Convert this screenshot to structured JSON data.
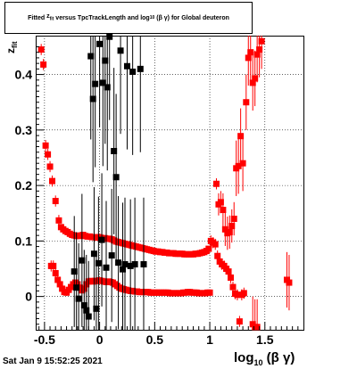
{
  "title": {
    "prefix": "Fitted",
    "z": "z",
    "z_sub": "fit",
    "middle": "versus TpcTrackLength and log",
    "log_sub": "10",
    "tail": "(β γ) for Global deuteron"
  },
  "footer": "Sat Jan  9 15:52:25 2021",
  "chart_data": {
    "type": "scatter",
    "title": "Fitted z_fit versus TpcTrackLength and log10(β γ) for Global deuteron",
    "xlabel": "log10(β γ)",
    "ylabel": "z_fit",
    "xlim": [
      -0.58,
      1.85
    ],
    "ylim": [
      -0.06,
      0.47
    ],
    "x_ticks": [
      "-0.5",
      "0",
      "0.5",
      "1",
      "1.5"
    ],
    "y_ticks": [
      "0",
      "0.1",
      "0.2",
      "0.3",
      "0.4"
    ],
    "grid": true,
    "colors": {
      "red": "#ff0000",
      "black": "#000000"
    },
    "series": [
      {
        "color": "#ff0000",
        "points": [
          [
            -0.53,
            0.445,
            0.01
          ],
          [
            -0.51,
            0.418,
            0.01
          ],
          [
            -0.49,
            0.272,
            0.01
          ],
          [
            -0.47,
            0.256,
            0.01
          ],
          [
            -0.45,
            0.234,
            0.01
          ],
          [
            -0.43,
            0.208,
            0.01
          ],
          [
            -0.4,
            0.172,
            0.01
          ],
          [
            -0.37,
            0.137,
            0.01
          ],
          [
            -0.35,
            0.125,
            0.004
          ],
          [
            -0.33,
            0.121,
            0.004
          ],
          [
            -0.31,
            0.118,
            0.004
          ],
          [
            -0.29,
            0.116,
            0.004
          ],
          [
            -0.27,
            0.113,
            0.004
          ],
          [
            -0.25,
            0.111,
            0.004
          ],
          [
            -0.23,
            0.11,
            0.004
          ],
          [
            -0.21,
            0.109,
            0.004
          ],
          [
            -0.19,
            0.109,
            0.004
          ],
          [
            -0.17,
            0.11,
            0.004
          ],
          [
            -0.15,
            0.111,
            0.004
          ],
          [
            -0.13,
            0.109,
            0.004
          ],
          [
            -0.11,
            0.108,
            0.004
          ],
          [
            -0.09,
            0.108,
            0.004
          ],
          [
            -0.07,
            0.107,
            0.004
          ],
          [
            -0.05,
            0.107,
            0.004
          ],
          [
            -0.03,
            0.106,
            0.004
          ],
          [
            -0.01,
            0.107,
            0.004
          ],
          [
            0.01,
            0.106,
            0.004
          ],
          [
            0.03,
            0.105,
            0.004
          ],
          [
            0.05,
            0.105,
            0.004
          ],
          [
            0.07,
            0.104,
            0.004
          ],
          [
            0.09,
            0.104,
            0.004
          ],
          [
            0.11,
            0.103,
            0.004
          ],
          [
            0.13,
            0.101,
            0.004
          ],
          [
            0.15,
            0.099,
            0.004
          ],
          [
            0.17,
            0.098,
            0.004
          ],
          [
            0.19,
            0.097,
            0.004
          ],
          [
            0.21,
            0.096,
            0.004
          ],
          [
            0.23,
            0.095,
            0.004
          ],
          [
            0.25,
            0.094,
            0.004
          ],
          [
            0.27,
            0.093,
            0.004
          ],
          [
            0.29,
            0.092,
            0.004
          ],
          [
            0.31,
            0.091,
            0.004
          ],
          [
            0.33,
            0.09,
            0.004
          ],
          [
            0.35,
            0.089,
            0.004
          ],
          [
            0.37,
            0.088,
            0.004
          ],
          [
            0.39,
            0.087,
            0.004
          ],
          [
            0.41,
            0.086,
            0.004
          ],
          [
            0.43,
            0.085,
            0.004
          ],
          [
            0.45,
            0.084,
            0.004
          ],
          [
            0.47,
            0.083,
            0.004
          ],
          [
            0.49,
            0.082,
            0.004
          ],
          [
            0.51,
            0.081,
            0.004
          ],
          [
            0.53,
            0.081,
            0.004
          ],
          [
            0.55,
            0.08,
            0.004
          ],
          [
            0.57,
            0.08,
            0.004
          ],
          [
            0.59,
            0.079,
            0.004
          ],
          [
            0.61,
            0.079,
            0.004
          ],
          [
            0.63,
            0.078,
            0.004
          ],
          [
            0.65,
            0.078,
            0.004
          ],
          [
            0.67,
            0.078,
            0.004
          ],
          [
            0.69,
            0.077,
            0.004
          ],
          [
            0.71,
            0.077,
            0.004
          ],
          [
            0.73,
            0.077,
            0.004
          ],
          [
            0.75,
            0.077,
            0.004
          ],
          [
            0.77,
            0.076,
            0.004
          ],
          [
            0.79,
            0.076,
            0.004
          ],
          [
            0.81,
            0.076,
            0.004
          ],
          [
            0.83,
            0.076,
            0.004
          ],
          [
            0.85,
            0.076,
            0.004
          ],
          [
            0.87,
            0.077,
            0.004
          ],
          [
            0.89,
            0.077,
            0.004
          ],
          [
            0.91,
            0.078,
            0.004
          ],
          [
            0.93,
            0.079,
            0.004
          ],
          [
            0.95,
            0.08,
            0.004
          ],
          [
            0.97,
            0.082,
            0.004
          ],
          [
            0.99,
            0.086,
            0.004
          ],
          [
            1.01,
            0.1,
            0.01
          ],
          [
            1.03,
            0.097,
            0.01
          ],
          [
            1.05,
            0.094,
            0.01
          ],
          [
            1.06,
            0.203,
            0.01
          ],
          [
            1.08,
            0.166,
            0.02
          ],
          [
            1.1,
            0.17,
            0.02
          ],
          [
            1.12,
            0.156,
            0.03
          ],
          [
            1.14,
            0.121,
            0.03
          ],
          [
            1.16,
            0.114,
            0.03
          ],
          [
            1.18,
            0.116,
            0.03
          ],
          [
            1.2,
            0.127,
            0.03
          ],
          [
            1.22,
            0.14,
            0.03
          ],
          [
            1.24,
            0.231,
            0.05
          ],
          [
            1.26,
            0.235,
            0.05
          ],
          [
            1.28,
            0.289,
            0.05
          ],
          [
            1.3,
            0.24,
            0.05
          ],
          [
            1.33,
            0.35,
            0.05
          ],
          [
            1.35,
            0.43,
            0.05
          ],
          [
            1.37,
            0.44,
            0.05
          ],
          [
            1.39,
            0.385,
            0.05
          ],
          [
            1.41,
            0.393,
            0.05
          ],
          [
            1.43,
            0.436,
            0.05
          ],
          [
            1.45,
            0.445,
            0.05
          ],
          [
            1.47,
            0.46,
            0.05
          ],
          [
            1.7,
            0.03,
            0.05
          ],
          [
            1.72,
            0.025,
            0.05
          ],
          [
            -0.44,
            0.055,
            0.01
          ],
          [
            -0.42,
            0.055,
            0.01
          ],
          [
            -0.4,
            0.042,
            0.01
          ],
          [
            -0.38,
            0.03,
            0.01
          ],
          [
            -0.36,
            0.022,
            0.01
          ],
          [
            -0.34,
            0.014,
            0.006
          ],
          [
            -0.32,
            0.008,
            0.006
          ],
          [
            -0.3,
            0.007,
            0.006
          ],
          [
            -0.28,
            0.012,
            0.005
          ],
          [
            -0.26,
            0.017,
            0.005
          ],
          [
            -0.24,
            0.022,
            0.005
          ],
          [
            -0.22,
            0.025,
            0.005
          ],
          [
            -0.2,
            0.022,
            0.005
          ],
          [
            -0.18,
            0.016,
            0.005
          ],
          [
            -0.16,
            0.011,
            0.005
          ],
          [
            -0.14,
            0.014,
            0.005
          ],
          [
            -0.12,
            0.022,
            0.005
          ],
          [
            -0.1,
            0.027,
            0.005
          ],
          [
            -0.08,
            0.028,
            0.005
          ],
          [
            -0.06,
            0.027,
            0.004
          ],
          [
            -0.04,
            0.028,
            0.004
          ],
          [
            -0.02,
            0.028,
            0.004
          ],
          [
            0.0,
            0.029,
            0.004
          ],
          [
            0.02,
            0.028,
            0.004
          ],
          [
            0.04,
            0.027,
            0.004
          ],
          [
            0.06,
            0.026,
            0.004
          ],
          [
            0.08,
            0.027,
            0.004
          ],
          [
            0.1,
            0.026,
            0.004
          ],
          [
            0.12,
            0.025,
            0.004
          ],
          [
            0.14,
            0.022,
            0.004
          ],
          [
            0.16,
            0.019,
            0.004
          ],
          [
            0.18,
            0.016,
            0.004
          ],
          [
            0.2,
            0.014,
            0.004
          ],
          [
            0.22,
            0.013,
            0.004
          ],
          [
            0.24,
            0.012,
            0.004
          ],
          [
            0.26,
            0.011,
            0.004
          ],
          [
            0.28,
            0.01,
            0.004
          ],
          [
            0.3,
            0.01,
            0.004
          ],
          [
            0.32,
            0.009,
            0.004
          ],
          [
            0.34,
            0.009,
            0.004
          ],
          [
            0.36,
            0.008,
            0.004
          ],
          [
            0.38,
            0.008,
            0.004
          ],
          [
            0.4,
            0.008,
            0.004
          ],
          [
            0.42,
            0.008,
            0.004
          ],
          [
            0.44,
            0.008,
            0.004
          ],
          [
            0.46,
            0.007,
            0.004
          ],
          [
            0.48,
            0.007,
            0.004
          ],
          [
            0.5,
            0.007,
            0.004
          ],
          [
            0.52,
            0.007,
            0.004
          ],
          [
            0.54,
            0.007,
            0.004
          ],
          [
            0.56,
            0.007,
            0.004
          ],
          [
            0.58,
            0.007,
            0.004
          ],
          [
            0.6,
            0.007,
            0.004
          ],
          [
            0.62,
            0.007,
            0.004
          ],
          [
            0.64,
            0.006,
            0.004
          ],
          [
            0.66,
            0.006,
            0.004
          ],
          [
            0.68,
            0.006,
            0.004
          ],
          [
            0.7,
            0.006,
            0.004
          ],
          [
            0.72,
            0.006,
            0.004
          ],
          [
            0.74,
            0.006,
            0.004
          ],
          [
            0.76,
            0.007,
            0.004
          ],
          [
            0.78,
            0.007,
            0.004
          ],
          [
            0.8,
            0.008,
            0.004
          ],
          [
            0.82,
            0.008,
            0.004
          ],
          [
            0.84,
            0.007,
            0.004
          ],
          [
            0.86,
            0.007,
            0.004
          ],
          [
            0.88,
            0.007,
            0.004
          ],
          [
            0.9,
            0.006,
            0.004
          ],
          [
            0.92,
            0.006,
            0.004
          ],
          [
            0.94,
            0.006,
            0.004
          ],
          [
            0.96,
            0.006,
            0.004
          ],
          [
            0.98,
            0.007,
            0.004
          ],
          [
            1.0,
            0.007,
            0.004
          ],
          [
            1.07,
            0.073,
            0.01
          ],
          [
            1.09,
            0.063,
            0.01
          ],
          [
            1.11,
            0.058,
            0.01
          ],
          [
            1.13,
            0.055,
            0.01
          ],
          [
            1.15,
            0.05,
            0.01
          ],
          [
            1.17,
            0.045,
            0.01
          ],
          [
            1.19,
            0.034,
            0.01
          ],
          [
            1.21,
            0.017,
            0.01
          ],
          [
            1.23,
            0.005,
            0.01
          ],
          [
            1.25,
            0.003,
            0.01
          ],
          [
            1.27,
            -0.045,
            0.01
          ],
          [
            1.29,
            0.003,
            0.01
          ],
          [
            1.31,
            0.006,
            0.01
          ],
          [
            1.39,
            -0.05,
            0.05
          ],
          [
            1.41,
            -0.055,
            0.05
          ],
          [
            1.43,
            -0.055,
            0.05
          ]
        ]
      },
      {
        "color": "#000000",
        "points": [
          [
            -0.23,
            0.045,
            0.1
          ],
          [
            -0.21,
            0.016,
            0.1
          ],
          [
            -0.19,
            -0.004,
            0.1
          ],
          [
            -0.16,
            0.065,
            0.12
          ],
          [
            -0.14,
            -0.016,
            0.1
          ],
          [
            -0.12,
            -0.025,
            0.1
          ],
          [
            -0.1,
            -0.036,
            0.1
          ],
          [
            -0.08,
            0.433,
            0.15
          ],
          [
            -0.06,
            0.356,
            0.15
          ],
          [
            -0.05,
            0.077,
            0.12
          ],
          [
            -0.04,
            0.383,
            0.15
          ],
          [
            -0.03,
            -0.022,
            0.1
          ],
          [
            -0.01,
            0.06,
            0.12
          ],
          [
            0.0,
            0.455,
            0.15
          ],
          [
            0.02,
            0.102,
            0.12
          ],
          [
            0.03,
            0.385,
            0.15
          ],
          [
            0.05,
            0.425,
            0.15
          ],
          [
            0.06,
            0.052,
            0.12
          ],
          [
            0.07,
            0.377,
            0.15
          ],
          [
            0.09,
            0.468,
            0.15
          ],
          [
            0.11,
            0.074,
            0.12
          ],
          [
            0.13,
            0.262,
            0.15
          ],
          [
            0.15,
            0.215,
            0.15
          ],
          [
            0.17,
            0.061,
            0.12
          ],
          [
            0.19,
            0.443,
            0.15
          ],
          [
            0.21,
            0.049,
            0.12
          ],
          [
            0.23,
            0.058,
            0.12
          ],
          [
            0.25,
            0.415,
            0.15
          ],
          [
            0.28,
            0.055,
            0.12
          ],
          [
            0.3,
            0.405,
            0.15
          ],
          [
            0.32,
            0.058,
            0.12
          ],
          [
            0.37,
            0.41,
            0.15
          ],
          [
            0.4,
            0.058,
            0.12
          ]
        ]
      }
    ]
  }
}
